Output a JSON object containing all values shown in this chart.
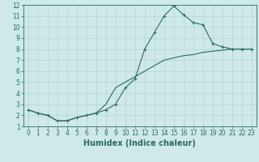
{
  "xlabel": "Humidex (Indice chaleur)",
  "bg_color": "#cfe8e8",
  "grid_color": "#b8d8d8",
  "line_color": "#2a6b60",
  "xlim": [
    -0.5,
    23.5
  ],
  "ylim": [
    1,
    12
  ],
  "xticks": [
    0,
    1,
    2,
    3,
    4,
    5,
    6,
    7,
    8,
    9,
    10,
    11,
    12,
    13,
    14,
    15,
    16,
    17,
    18,
    19,
    20,
    21,
    22,
    23
  ],
  "yticks": [
    1,
    2,
    3,
    4,
    5,
    6,
    7,
    8,
    9,
    10,
    11,
    12
  ],
  "line1_x": [
    0,
    1,
    2,
    3,
    4,
    5,
    6,
    7,
    8,
    9,
    10,
    11,
    12,
    13,
    14,
    15,
    16,
    17,
    18,
    19,
    20,
    21,
    22,
    23
  ],
  "line1_y": [
    2.5,
    2.2,
    2.0,
    1.5,
    1.5,
    1.8,
    2.0,
    2.2,
    2.5,
    3.0,
    4.5,
    5.3,
    8.0,
    9.5,
    11.0,
    11.9,
    11.1,
    10.4,
    10.2,
    8.5,
    8.2,
    8.0,
    8.0,
    8.0
  ],
  "line2_x": [
    0,
    1,
    2,
    3,
    4,
    5,
    6,
    7,
    8,
    9,
    10,
    11,
    12,
    13,
    14,
    15,
    16,
    17,
    18,
    19,
    20,
    21,
    22,
    23
  ],
  "line2_y": [
    2.5,
    2.2,
    2.0,
    1.5,
    1.5,
    1.8,
    2.0,
    2.2,
    3.0,
    4.5,
    5.0,
    5.5,
    6.0,
    6.5,
    7.0,
    7.2,
    7.4,
    7.5,
    7.7,
    7.8,
    7.9,
    8.0,
    8.0,
    8.0
  ],
  "fontsize_label": 7,
  "fontsize_tick": 5.5,
  "marker_size": 2.5,
  "line_width": 0.8
}
